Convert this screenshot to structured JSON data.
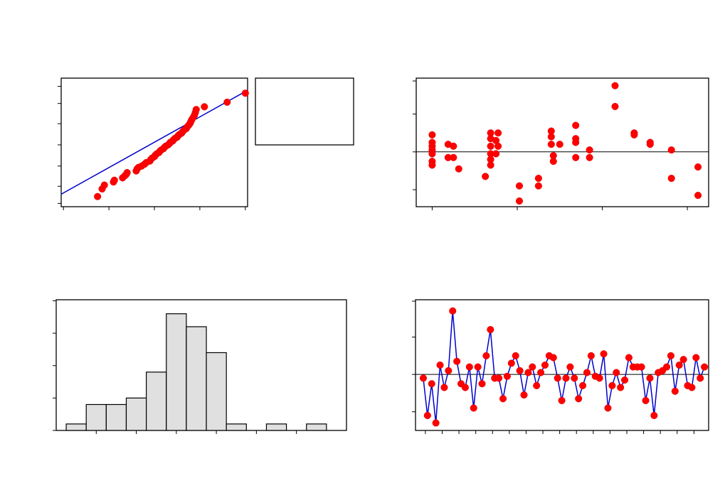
{
  "chart_data": [
    {
      "type": "scatter",
      "panel": "normal-probability-plot",
      "title": "",
      "xlabel": "",
      "ylabel": "",
      "xlim": [
        -2.05,
        2.05
      ],
      "ylim": [
        0.7,
        99.6
      ],
      "yscale": "probability",
      "fit_line": {
        "x": [
          -2.05,
          2.05
        ],
        "y": [
          2.5,
          98.5
        ]
      },
      "points": [
        {
          "x": -1.25,
          "y": 2.0
        },
        {
          "x": -1.15,
          "y": 4.0
        },
        {
          "x": -1.1,
          "y": 5.5
        },
        {
          "x": -0.9,
          "y": 7.0
        },
        {
          "x": -0.88,
          "y": 8.0
        },
        {
          "x": -0.7,
          "y": 9.5
        },
        {
          "x": -0.65,
          "y": 11.0
        },
        {
          "x": -0.62,
          "y": 12.0
        },
        {
          "x": -0.6,
          "y": 13.5
        },
        {
          "x": -0.4,
          "y": 15.0
        },
        {
          "x": -0.38,
          "y": 17.0
        },
        {
          "x": -0.35,
          "y": 18.5
        },
        {
          "x": -0.28,
          "y": 20.0
        },
        {
          "x": -0.22,
          "y": 22.0
        },
        {
          "x": -0.18,
          "y": 24.0
        },
        {
          "x": -0.1,
          "y": 26.0
        },
        {
          "x": -0.08,
          "y": 28.0
        },
        {
          "x": -0.05,
          "y": 30.0
        },
        {
          "x": 0.0,
          "y": 32.0
        },
        {
          "x": 0.02,
          "y": 34.0
        },
        {
          "x": 0.05,
          "y": 36.0
        },
        {
          "x": 0.1,
          "y": 38.0
        },
        {
          "x": 0.12,
          "y": 40.0
        },
        {
          "x": 0.15,
          "y": 42.0
        },
        {
          "x": 0.2,
          "y": 44.0
        },
        {
          "x": 0.22,
          "y": 46.0
        },
        {
          "x": 0.25,
          "y": 48.0
        },
        {
          "x": 0.3,
          "y": 50.0
        },
        {
          "x": 0.33,
          "y": 52.0
        },
        {
          "x": 0.35,
          "y": 54.0
        },
        {
          "x": 0.4,
          "y": 56.0
        },
        {
          "x": 0.42,
          "y": 58.0
        },
        {
          "x": 0.45,
          "y": 60.0
        },
        {
          "x": 0.5,
          "y": 62.0
        },
        {
          "x": 0.52,
          "y": 64.0
        },
        {
          "x": 0.55,
          "y": 66.0
        },
        {
          "x": 0.6,
          "y": 68.0
        },
        {
          "x": 0.62,
          "y": 70.0
        },
        {
          "x": 0.65,
          "y": 72.0
        },
        {
          "x": 0.7,
          "y": 74.0
        },
        {
          "x": 0.72,
          "y": 76.0
        },
        {
          "x": 0.75,
          "y": 78.0
        },
        {
          "x": 0.78,
          "y": 80.0
        },
        {
          "x": 0.8,
          "y": 82.0
        },
        {
          "x": 0.82,
          "y": 84.0
        },
        {
          "x": 0.85,
          "y": 86.0
        },
        {
          "x": 0.88,
          "y": 88.0
        },
        {
          "x": 0.9,
          "y": 90.0
        },
        {
          "x": 0.92,
          "y": 92.0
        },
        {
          "x": 1.1,
          "y": 93.5
        },
        {
          "x": 1.6,
          "y": 95.5
        },
        {
          "x": 2.0,
          "y": 98.0
        }
      ]
    },
    {
      "type": "scatter",
      "panel": "residuals-versus-fits",
      "title": "",
      "xlabel": "",
      "ylabel": "",
      "xlim": [
        -0.15,
        2.6
      ],
      "ylim": [
        -1.45,
        1.95
      ],
      "reference_line": 0,
      "points": [
        {
          "x": 0.0,
          "y": 0.45
        },
        {
          "x": 0.0,
          "y": 0.25
        },
        {
          "x": 0.0,
          "y": 0.15
        },
        {
          "x": 0.0,
          "y": 0.05
        },
        {
          "x": 0.0,
          "y": -0.05
        },
        {
          "x": 0.0,
          "y": -0.25
        },
        {
          "x": 0.0,
          "y": -0.35
        },
        {
          "x": 0.15,
          "y": 0.2
        },
        {
          "x": 0.15,
          "y": -0.15
        },
        {
          "x": 0.2,
          "y": 0.15
        },
        {
          "x": 0.2,
          "y": -0.15
        },
        {
          "x": 0.25,
          "y": -0.45
        },
        {
          "x": 0.5,
          "y": -0.65
        },
        {
          "x": 0.55,
          "y": 0.5
        },
        {
          "x": 0.55,
          "y": 0.35
        },
        {
          "x": 0.55,
          "y": 0.15
        },
        {
          "x": 0.55,
          "y": -0.05
        },
        {
          "x": 0.55,
          "y": -0.2
        },
        {
          "x": 0.55,
          "y": -0.35
        },
        {
          "x": 0.6,
          "y": 0.3
        },
        {
          "x": 0.6,
          "y": -0.05
        },
        {
          "x": 0.62,
          "y": 0.15
        },
        {
          "x": 0.62,
          "y": 0.5
        },
        {
          "x": 0.82,
          "y": -0.9
        },
        {
          "x": 0.82,
          "y": -1.3
        },
        {
          "x": 1.0,
          "y": -0.9
        },
        {
          "x": 1.0,
          "y": -0.7
        },
        {
          "x": 1.12,
          "y": 0.55
        },
        {
          "x": 1.12,
          "y": 0.4
        },
        {
          "x": 1.12,
          "y": 0.2
        },
        {
          "x": 1.14,
          "y": -0.1
        },
        {
          "x": 1.14,
          "y": -0.25
        },
        {
          "x": 1.2,
          "y": 0.2
        },
        {
          "x": 1.35,
          "y": 0.7
        },
        {
          "x": 1.35,
          "y": 0.35
        },
        {
          "x": 1.35,
          "y": 0.25
        },
        {
          "x": 1.35,
          "y": -0.15
        },
        {
          "x": 1.48,
          "y": 0.05
        },
        {
          "x": 1.48,
          "y": -0.15
        },
        {
          "x": 1.72,
          "y": 1.75
        },
        {
          "x": 1.72,
          "y": 1.2
        },
        {
          "x": 1.9,
          "y": 0.5
        },
        {
          "x": 1.9,
          "y": 0.45
        },
        {
          "x": 2.05,
          "y": 0.25
        },
        {
          "x": 2.05,
          "y": 0.2
        },
        {
          "x": 2.25,
          "y": 0.05
        },
        {
          "x": 2.25,
          "y": -0.7
        },
        {
          "x": 2.5,
          "y": -0.4
        },
        {
          "x": 2.5,
          "y": -1.15
        }
      ]
    },
    {
      "type": "bar",
      "panel": "histogram",
      "title": "",
      "xlabel": "",
      "ylabel": "",
      "ylim": [
        0,
        18
      ],
      "bins": [
        {
          "from": -1.4,
          "to": -1.2,
          "count": 1
        },
        {
          "from": -1.2,
          "to": -1.0,
          "count": 4
        },
        {
          "from": -1.0,
          "to": -0.8,
          "count": 4
        },
        {
          "from": -0.8,
          "to": -0.6,
          "count": 5
        },
        {
          "from": -0.6,
          "to": -0.4,
          "count": 9
        },
        {
          "from": -0.4,
          "to": -0.2,
          "count": 18
        },
        {
          "from": -0.2,
          "to": 0.0,
          "count": 16
        },
        {
          "from": 0.0,
          "to": 0.2,
          "count": 12
        },
        {
          "from": 0.2,
          "to": 0.4,
          "count": 1
        },
        {
          "from": 0.4,
          "to": 0.6,
          "count": 0
        },
        {
          "from": 0.6,
          "to": 0.8,
          "count": 1
        },
        {
          "from": 0.8,
          "to": 1.0,
          "count": 0
        },
        {
          "from": 1.0,
          "to": 1.2,
          "count": 1
        }
      ]
    },
    {
      "type": "line",
      "panel": "residuals-versus-order",
      "title": "",
      "xlabel": "",
      "ylabel": "",
      "xlim": [
        -0.5,
        68
      ],
      "ylim": [
        -1.5,
        2.0
      ],
      "reference_line": 0,
      "x": [
        0,
        1,
        2,
        3,
        4,
        5,
        6,
        7,
        8,
        9,
        10,
        11,
        12,
        13,
        14,
        15,
        16,
        17,
        18,
        19,
        20,
        21,
        22,
        23,
        24,
        25,
        26,
        27,
        28,
        29,
        30,
        31,
        32,
        33,
        34,
        35,
        36,
        37,
        38,
        39,
        40,
        41,
        42,
        43,
        44,
        45,
        46,
        47,
        48,
        49,
        50,
        51,
        52,
        53,
        54,
        55,
        56,
        57,
        58,
        59,
        60,
        61,
        62,
        63,
        64,
        65,
        66,
        67
      ],
      "values": [
        -0.1,
        -1.1,
        -0.25,
        -1.3,
        0.25,
        -0.35,
        0.1,
        1.7,
        0.35,
        -0.25,
        -0.35,
        0.2,
        -0.9,
        0.2,
        -0.25,
        0.5,
        1.2,
        -0.1,
        -0.1,
        -0.65,
        -0.05,
        0.3,
        0.5,
        0.1,
        -0.55,
        0.05,
        0.2,
        -0.3,
        0.05,
        0.25,
        0.5,
        0.45,
        -0.1,
        -0.7,
        -0.1,
        0.2,
        -0.1,
        -0.65,
        -0.3,
        0.05,
        0.5,
        -0.05,
        -0.1,
        0.55,
        -0.9,
        -0.3,
        0.05,
        -0.35,
        -0.15,
        0.45,
        0.2,
        0.2,
        0.2,
        -0.7,
        -0.1,
        -1.1,
        0.05,
        0.1,
        0.2,
        0.5,
        -0.45,
        0.25,
        0.4,
        -0.3,
        -0.35,
        0.45,
        -0.1,
        0.2
      ]
    }
  ],
  "legend_box": {
    "text": ""
  }
}
